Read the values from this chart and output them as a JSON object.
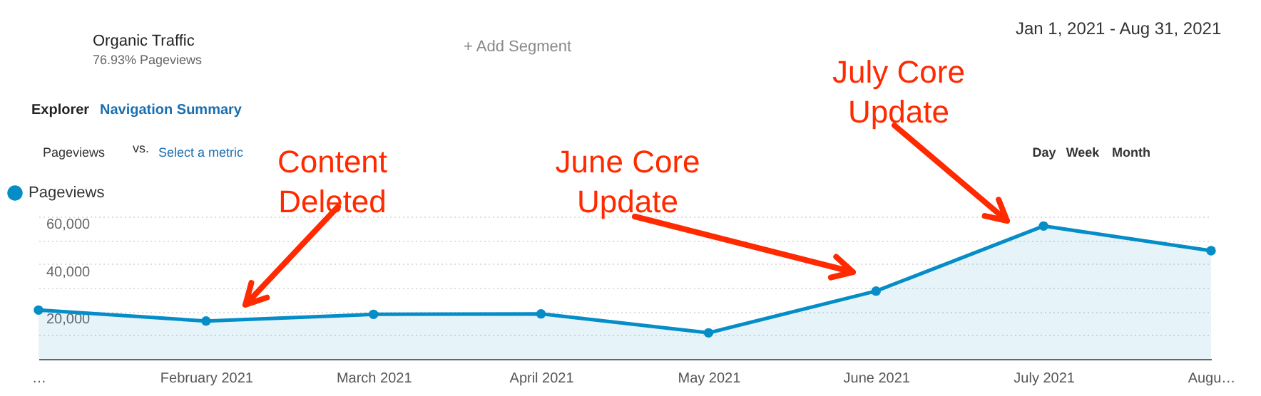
{
  "chart_data": {
    "type": "area",
    "categories": [
      "…",
      "February 2021",
      "March 2021",
      "April 2021",
      "May 2021",
      "June 2021",
      "July 2021",
      "Augu…"
    ],
    "series": [
      {
        "name": "Pageviews",
        "color": "#058dc7",
        "values": [
          20600,
          16000,
          18800,
          19000,
          11000,
          28600,
          56000,
          45600
        ]
      }
    ],
    "ylim": [
      0,
      60000
    ],
    "yticks": [
      {
        "value": 10000,
        "label": null
      },
      {
        "value": 20000,
        "label": "20,000"
      },
      {
        "value": 30000,
        "label": null
      },
      {
        "value": 40000,
        "label": "40,000"
      },
      {
        "value": 50000,
        "label": null
      },
      {
        "value": 60000,
        "label": "60,000"
      }
    ],
    "grid": "y",
    "legend": "top left",
    "marker": "circle",
    "line_style": "solid",
    "annotations": [
      "Content\nDeleted",
      "June Core\nUpdate",
      "July Core\nUpdate",
      "Organic Traffic",
      "76.93% Pageviews",
      "+ Add Segment",
      "Jan 1, 2021 - Aug 31, 2021",
      "Explorer",
      "Navigation Summary",
      "Pageviews",
      "vs.",
      "Select a metric",
      "Day",
      "Week",
      "Month"
    ]
  }
}
